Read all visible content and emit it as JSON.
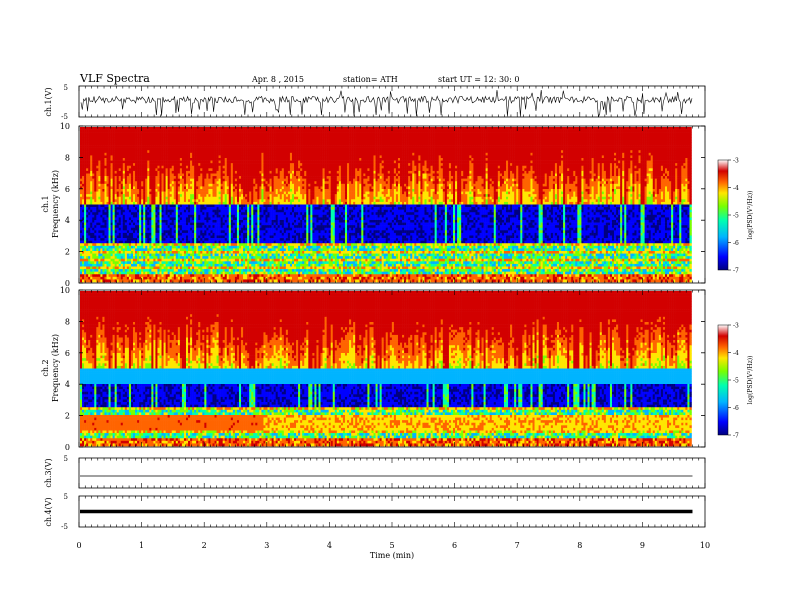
{
  "header": {
    "title": "VLF  Spectra",
    "date": "Apr. 8  , 2015",
    "station": "station= ATH",
    "start_ut": "start  UT =   12: 30: 0"
  },
  "colors": {
    "background": "#ffffff",
    "axis": "#000000",
    "colormap": [
      "#000080",
      "#0000ff",
      "#00b4ff",
      "#00ffb0",
      "#78ff00",
      "#ffe600",
      "#ff6400",
      "#d20000",
      "#ffffff"
    ]
  },
  "chart_data": [
    {
      "type": "line",
      "id": "ch1-waveform",
      "ylabel": "ch.1(V)",
      "ylim": [
        -5,
        5
      ],
      "y_ticks": [
        "5",
        "-5"
      ],
      "x_range_min": [
        0,
        9.8
      ],
      "description": "noisy waveform around ~ +1 V with frequent negative spikes"
    },
    {
      "type": "heatmap",
      "id": "ch1-spectrogram",
      "ylabel": [
        "ch.1",
        "Frequency  (kHz)"
      ],
      "ylim": [
        0,
        10
      ],
      "y_ticks": [
        "0",
        "2",
        "4",
        "6",
        "8",
        "10"
      ],
      "x_range_min": [
        0,
        9.8
      ],
      "colorbar": {
        "label": "log(PSD(V²/Hz))",
        "range": [
          -7,
          -3
        ],
        "ticks": [
          "-3",
          "-4",
          "-5",
          "-6",
          "-7"
        ]
      }
    },
    {
      "type": "heatmap",
      "id": "ch2-spectrogram",
      "ylabel": [
        "ch.2",
        "Frequency  (kHz)"
      ],
      "ylim": [
        0,
        10
      ],
      "y_ticks": [
        "0",
        "2",
        "4",
        "6",
        "8",
        "10"
      ],
      "x_range_min": [
        0,
        9.8
      ],
      "colorbar": {
        "label": "log(PSD(V²/Hz))",
        "range": [
          -7,
          -3
        ],
        "ticks": [
          "-3",
          "-4",
          "-5",
          "-6",
          "-7"
        ]
      }
    },
    {
      "type": "line",
      "id": "ch3-waveform",
      "ylabel": "ch.3(V)",
      "ylim": [
        -5,
        5
      ],
      "y_ticks": [
        "5",
        "-5"
      ],
      "level": -1,
      "x_range_min": [
        0,
        9.8
      ]
    },
    {
      "type": "line",
      "id": "ch4-waveform",
      "ylabel": "ch.4(V)",
      "ylim": [
        -5,
        5
      ],
      "y_ticks": [
        "5",
        "-5"
      ],
      "level": 0,
      "x_range_min": [
        0,
        9.8
      ]
    }
  ],
  "x_axis": {
    "label": "Time  (min)",
    "ticks": [
      "0",
      "1",
      "2",
      "3",
      "4",
      "5",
      "6",
      "7",
      "8",
      "9",
      "10"
    ],
    "xlim": [
      0,
      10
    ]
  }
}
